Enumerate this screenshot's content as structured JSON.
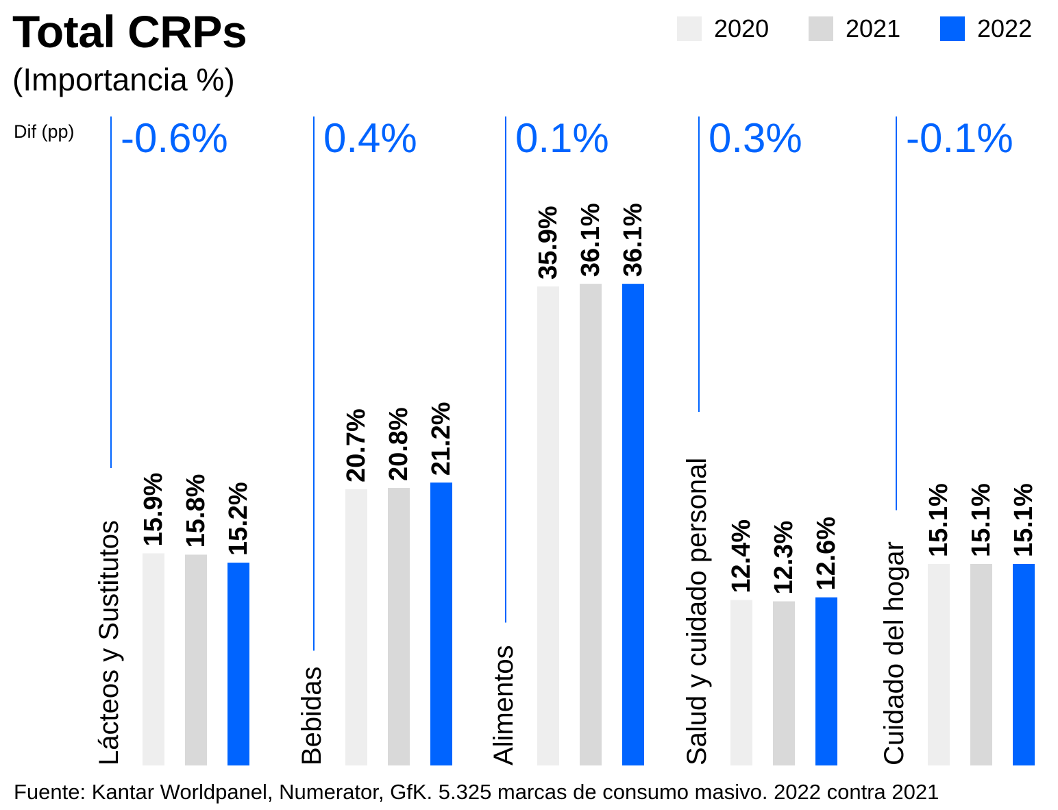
{
  "title": "Total CRPs",
  "subtitle": "(Importancia %)",
  "dif_label": "Dif (pp)",
  "source": "Fuente: Kantar Worldpanel, Numerator, GfK. 5.325 marcas de consumo masivo. 2022 contra 2021",
  "colors": {
    "2020": "#eeeeee",
    "2021": "#d9d9d9",
    "2022": "#0064ff",
    "accent": "#0064ff"
  },
  "legend": [
    {
      "label": "2020",
      "color": "#eeeeee"
    },
    {
      "label": "2021",
      "color": "#d9d9d9"
    },
    {
      "label": "2022",
      "color": "#0064ff"
    }
  ],
  "chart_data": {
    "type": "bar",
    "series_names": [
      "2020",
      "2021",
      "2022"
    ],
    "categories": [
      "Lácteos y Sustitutos",
      "Bebidas",
      "Alimentos",
      "Salud y cuidado personal",
      "Cuidado del hogar"
    ],
    "series": [
      {
        "name": "2020",
        "values": [
          15.9,
          20.7,
          35.9,
          12.4,
          15.1
        ],
        "labels": [
          "15.9%",
          "20.7%",
          "35.9%",
          "12.4%",
          "15.1%"
        ]
      },
      {
        "name": "2021",
        "values": [
          15.8,
          20.8,
          36.1,
          12.3,
          15.1
        ],
        "labels": [
          "15.8%",
          "20.8%",
          "36.1%",
          "12.3%",
          "15.1%"
        ]
      },
      {
        "name": "2022",
        "values": [
          15.2,
          21.2,
          36.1,
          12.6,
          15.1
        ],
        "labels": [
          "15.2%",
          "21.2%",
          "36.1%",
          "12.6%",
          "15.1%"
        ]
      }
    ],
    "differences": [
      "-0.6%",
      "0.4%",
      "0.1%",
      "0.3%",
      "-0.1%"
    ],
    "ylim": [
      0,
      40
    ],
    "grid": false,
    "legend_position": "top-right"
  }
}
